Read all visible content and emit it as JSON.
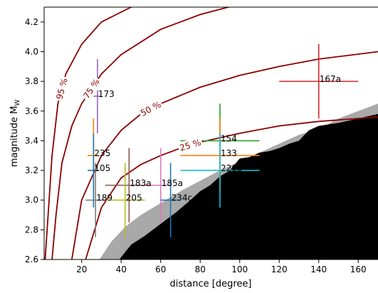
{
  "chart_data": {
    "type": "scatter",
    "xlabel": "distance [degree]",
    "ylabel": "magnitude M",
    "ylabel_subscript": "W",
    "xlim": [
      1,
      170
    ],
    "ylim": [
      2.6,
      4.3
    ],
    "xticks": [
      20,
      40,
      60,
      80,
      100,
      120,
      140,
      160
    ],
    "xtick_labels": [
      "20",
      "40",
      "60",
      "80",
      "100",
      "120",
      "140",
      "160"
    ],
    "yticks": [
      2.6,
      2.8,
      3.0,
      3.2,
      3.4,
      3.6,
      3.8,
      4.0,
      4.2
    ],
    "ytick_labels": [
      "2.6",
      "2.8",
      "3.0",
      "3.2",
      "3.4",
      "3.6",
      "3.8",
      "4.0",
      "4.2"
    ],
    "contour_color": "#8b0000",
    "contours": [
      {
        "label": "95 %",
        "x": [
          1.5,
          3,
          5,
          8,
          12,
          20,
          30,
          45,
          60,
          80,
          95
        ],
        "y": [
          2.6,
          2.9,
          3.3,
          3.65,
          3.85,
          4.05,
          4.2,
          4.3,
          4.37,
          4.44,
          4.47
        ]
      },
      {
        "label": "75 %",
        "x": [
          5,
          7,
          10,
          15,
          20,
          30,
          40,
          60,
          80,
          100,
          120
        ],
        "y": [
          2.6,
          2.9,
          3.25,
          3.5,
          3.65,
          3.85,
          3.98,
          4.15,
          4.25,
          4.32,
          4.38
        ]
      },
      {
        "label": "50 %",
        "x": [
          15,
          20,
          30,
          40,
          50,
          60,
          80,
          100,
          120,
          140,
          170
        ],
        "y": [
          2.6,
          3.0,
          3.3,
          3.47,
          3.58,
          3.65,
          3.76,
          3.84,
          3.9,
          3.95,
          4.0
        ]
      },
      {
        "label": "25 %",
        "x": [
          22,
          30,
          40,
          50,
          60,
          70,
          80,
          90,
          100,
          120,
          140,
          170
        ],
        "y": [
          2.6,
          2.95,
          3.15,
          3.24,
          3.3,
          3.35,
          3.39,
          3.42,
          3.45,
          3.5,
          3.53,
          3.56
        ]
      }
    ],
    "detection_threshold_band": {
      "color": "#a9a9a9",
      "x": [
        29,
        35,
        42,
        50,
        60,
        70,
        80,
        90,
        100,
        110,
        120,
        130,
        140,
        150,
        160,
        170
      ],
      "y": [
        2.6,
        2.72,
        2.82,
        2.9,
        2.98,
        3.06,
        3.13,
        3.2,
        3.26,
        3.32,
        3.38,
        3.44,
        3.48,
        3.55,
        3.6,
        3.65
      ]
    },
    "undetectable_region": {
      "color": "#000000",
      "x": [
        39,
        45,
        52,
        60,
        68,
        75,
        80,
        85,
        90,
        95,
        100,
        105,
        110,
        115,
        120,
        125,
        130,
        135,
        140,
        150,
        160,
        170
      ],
      "y": [
        2.6,
        2.7,
        2.76,
        2.84,
        2.92,
        3.0,
        3.06,
        3.1,
        3.16,
        3.2,
        3.28,
        3.29,
        3.32,
        3.33,
        3.35,
        3.38,
        3.4,
        3.47,
        3.5,
        3.52,
        3.55,
        3.58
      ]
    },
    "series": [
      {
        "name": "167a",
        "color": "#d62728",
        "x": 140,
        "y": 3.8,
        "xerr": [
          120,
          160
        ],
        "yerr": [
          3.55,
          4.05
        ]
      },
      {
        "name": "173",
        "color": "#9467bd",
        "x": 28,
        "y": 3.7,
        "xerr": [
          25,
          30
        ],
        "yerr": [
          3.45,
          3.95
        ]
      },
      {
        "name": "154",
        "color": "#2ca02c",
        "x": 90,
        "y": 3.4,
        "xerr": [
          70,
          110
        ],
        "yerr": [
          3.15,
          3.65
        ]
      },
      {
        "name": "133",
        "color": "#ff7f0e",
        "x": 90,
        "y": 3.3,
        "xerr": [
          70,
          110
        ],
        "yerr": [
          3.05,
          3.55
        ]
      },
      {
        "name": "226b",
        "color": "#17becf",
        "x": 90,
        "y": 3.2,
        "xerr": [
          70,
          110
        ],
        "yerr": [
          2.95,
          3.45
        ]
      },
      {
        "name": "235",
        "color": "#ff7f0e",
        "x": 26,
        "y": 3.3,
        "xerr": [
          23,
          29
        ],
        "yerr": [
          3.05,
          3.55
        ]
      },
      {
        "name": "105",
        "color": "#1f77b4",
        "x": 26,
        "y": 3.2,
        "xerr": [
          23,
          29
        ],
        "yerr": [
          2.95,
          3.45
        ]
      },
      {
        "name": "183a",
        "color": "#8c564b",
        "x": 44,
        "y": 3.1,
        "xerr": [
          32,
          56
        ],
        "yerr": [
          2.85,
          3.35
        ]
      },
      {
        "name": "185a",
        "color": "#e377c2",
        "x": 60,
        "y": 3.1,
        "xerr": [
          55,
          65
        ],
        "yerr": [
          2.85,
          3.35
        ]
      },
      {
        "name": "189",
        "color": "#7f7f7f",
        "x": 27,
        "y": 3.0,
        "xerr": [
          22,
          32
        ],
        "yerr": [
          2.75,
          3.25
        ]
      },
      {
        "name": "205",
        "color": "#bcbd22",
        "x": 42,
        "y": 3.0,
        "xerr": [
          32,
          52
        ],
        "yerr": [
          2.75,
          3.25
        ]
      },
      {
        "name": "234c",
        "color": "#1f77b4",
        "x": 65,
        "y": 3.0,
        "xerr": [
          60,
          70
        ],
        "yerr": [
          2.75,
          3.25
        ]
      }
    ]
  }
}
